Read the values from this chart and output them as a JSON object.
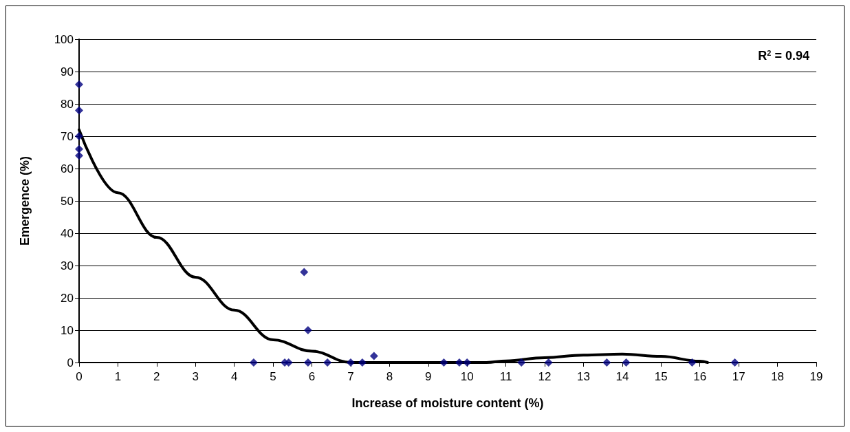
{
  "chart_data": {
    "type": "scatter",
    "xlabel": "Increase of moisture content (%)",
    "ylabel": "Emergence (%)",
    "annotations": [
      "R$^{2}$ = 0.94"
    ],
    "xlim": [
      0,
      19
    ],
    "xticks": [
      0,
      1,
      2,
      3,
      4,
      5,
      6,
      7,
      8,
      9,
      10,
      11,
      12,
      13,
      14,
      15,
      16,
      17,
      18,
      19
    ],
    "ylim": [
      0,
      100
    ],
    "yticks": [
      0,
      10,
      20,
      30,
      40,
      50,
      60,
      70,
      80,
      90,
      100
    ],
    "grid": "y",
    "marker": "diamond",
    "series": [
      {
        "color": "#000080",
        "x": [
          0,
          0,
          0,
          0,
          0,
          4.5,
          5.3,
          5.4,
          5.8,
          5.9,
          5.9,
          6.4,
          7.0,
          7.3,
          7.6,
          9.4,
          9.8,
          10.0,
          11.4,
          12.1,
          13.6,
          14.1,
          15.8,
          16.9
        ],
        "values": [
          86,
          78,
          70,
          66,
          64,
          0,
          0,
          0,
          28,
          10,
          0,
          0,
          0,
          0,
          2,
          0,
          0,
          0,
          0,
          0,
          0,
          0,
          0,
          0
        ]
      },
      {
        "type": "line",
        "color": "#000000",
        "marker": "none",
        "line_style": "solid",
        "x": [
          0,
          1,
          2,
          3,
          4,
          5,
          6,
          7,
          8,
          9,
          10,
          10.5,
          11,
          12,
          13,
          14,
          15,
          16,
          16.2
        ],
        "values": [
          72,
          52.5,
          38.7,
          26.4,
          16.2,
          7,
          3.5,
          0,
          0,
          0,
          0,
          0,
          0.5,
          1.5,
          2.3,
          2.6,
          1.9,
          0.4,
          0
        ]
      }
    ]
  }
}
